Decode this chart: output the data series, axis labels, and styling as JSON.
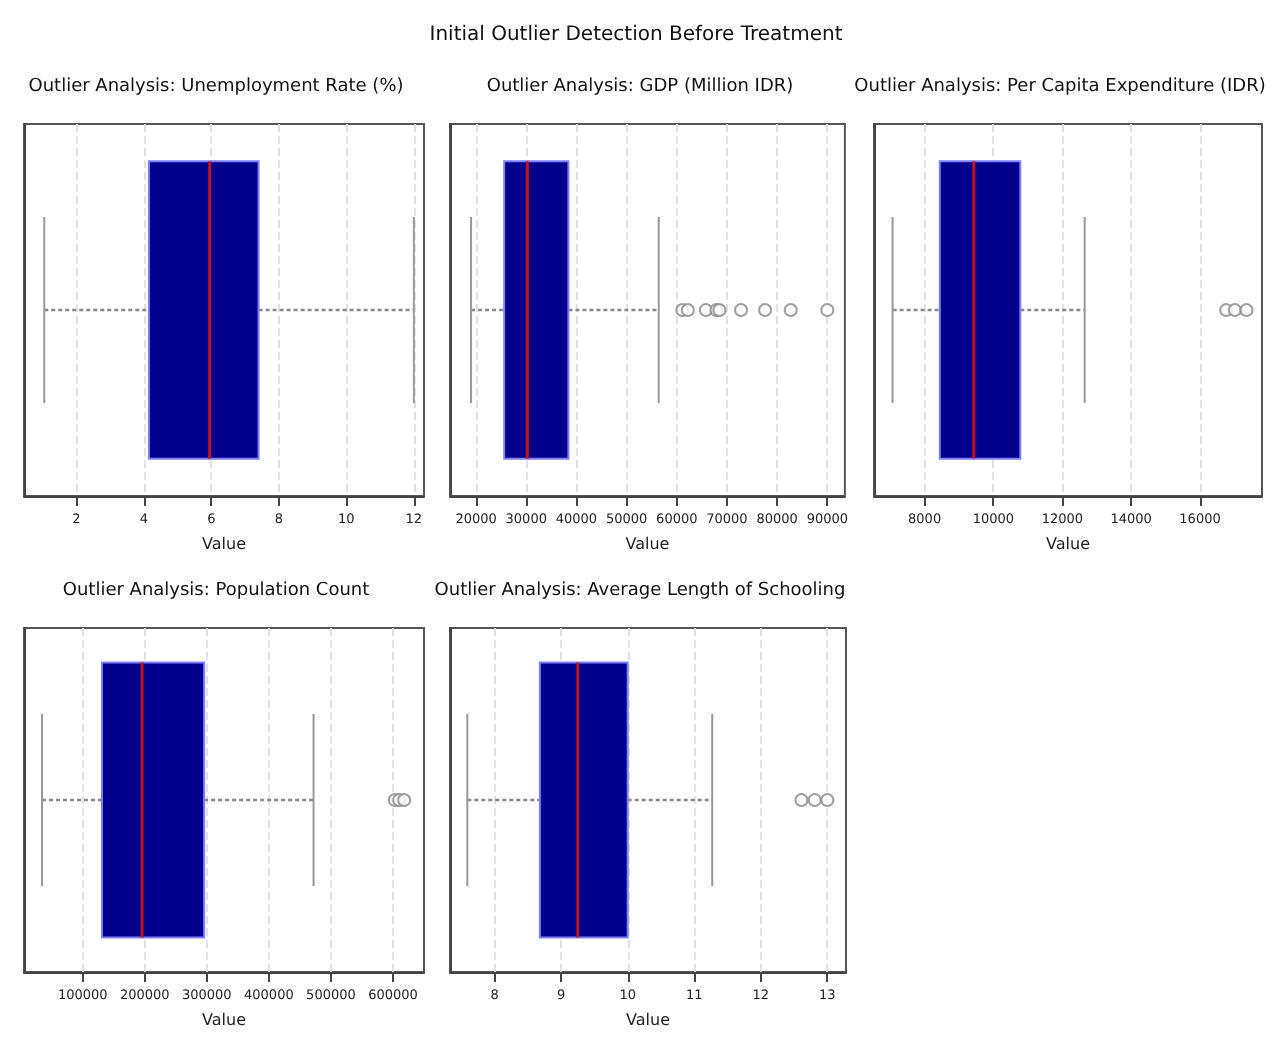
{
  "chart_data": [
    {
      "type": "box",
      "title": "Outlier Analysis: Unemployment Rate (%)",
      "annotations": [
        "Initial Outlier Detection Before Treatment"
      ],
      "xlabel": "Value",
      "categories": [
        null
      ],
      "orientation": "horizontal",
      "xlim": [
        0.45,
        12.3
      ],
      "xticks": [
        2,
        4,
        6,
        8,
        10,
        12
      ],
      "grid": "x",
      "tick_labels": "x",
      "series": [
        {
          "color": "#00008b",
          "boxes": [
            {
              "low": 1.05,
              "q1": 4.15,
              "median": 5.95,
              "q3": 7.4,
              "high": 12.0
            }
          ]
        }
      ]
    },
    {
      "type": "box",
      "title": "Outlier Analysis: GDP (Million IDR)",
      "xlabel": "Value",
      "categories": [
        null
      ],
      "orientation": "horizontal",
      "xlim": [
        14800,
        93500
      ],
      "xticks": [
        20000,
        30000,
        40000,
        50000,
        60000,
        70000,
        80000,
        90000
      ],
      "grid": "x",
      "tick_labels": "x",
      "series": [
        {
          "color": "#00008b",
          "boxes": [
            {
              "low": 19000,
              "q1": 25600,
              "median": 30200,
              "q3": 38400,
              "high": 56400,
              "outliers": [
                61100,
                62200,
                65800,
                67900,
                68500,
                72800,
                77600,
                82700,
                90000
              ]
            }
          ]
        }
      ]
    },
    {
      "type": "box",
      "title": "Outlier Analysis: Per Capita Expenditure (IDR)",
      "xlabel": "Value",
      "categories": [
        null
      ],
      "orientation": "horizontal",
      "xlim": [
        6530,
        17800
      ],
      "xticks": [
        8000,
        10000,
        12000,
        14000,
        16000
      ],
      "grid": "x",
      "tick_labels": "x",
      "series": [
        {
          "color": "#00008b",
          "boxes": [
            {
              "low": 7070,
              "q1": 8440,
              "median": 9430,
              "q3": 10780,
              "high": 12650,
              "outliers": [
                16760,
                17010,
                17350
              ]
            }
          ]
        }
      ]
    },
    {
      "type": "box",
      "title": "Outlier Analysis: Population Count",
      "xlabel": "Value",
      "categories": [
        null
      ],
      "orientation": "horizontal",
      "xlim": [
        5400,
        650000
      ],
      "xticks": [
        100000,
        200000,
        300000,
        400000,
        500000,
        600000
      ],
      "grid": "x",
      "tick_labels": "x",
      "series": [
        {
          "color": "#00008b",
          "boxes": [
            {
              "low": 34400,
              "q1": 131000,
              "median": 195700,
              "q3": 295700,
              "high": 472000,
              "outliers": [
                603000,
                610000,
                618000
              ]
            }
          ]
        }
      ]
    },
    {
      "type": "box",
      "title": "Outlier Analysis: Average Length of Schooling",
      "xlabel": "Value",
      "categories": [
        null
      ],
      "orientation": "horizontal",
      "xlim": [
        7.33,
        13.28
      ],
      "xticks": [
        8,
        9,
        10,
        11,
        12,
        13
      ],
      "grid": "x",
      "tick_labels": "x",
      "series": [
        {
          "color": "#00008b",
          "boxes": [
            {
              "low": 7.59,
              "q1": 8.68,
              "median": 9.25,
              "q3": 10.0,
              "high": 11.27,
              "outliers": [
                12.61,
                12.81,
                13.0
              ]
            }
          ]
        }
      ]
    }
  ]
}
